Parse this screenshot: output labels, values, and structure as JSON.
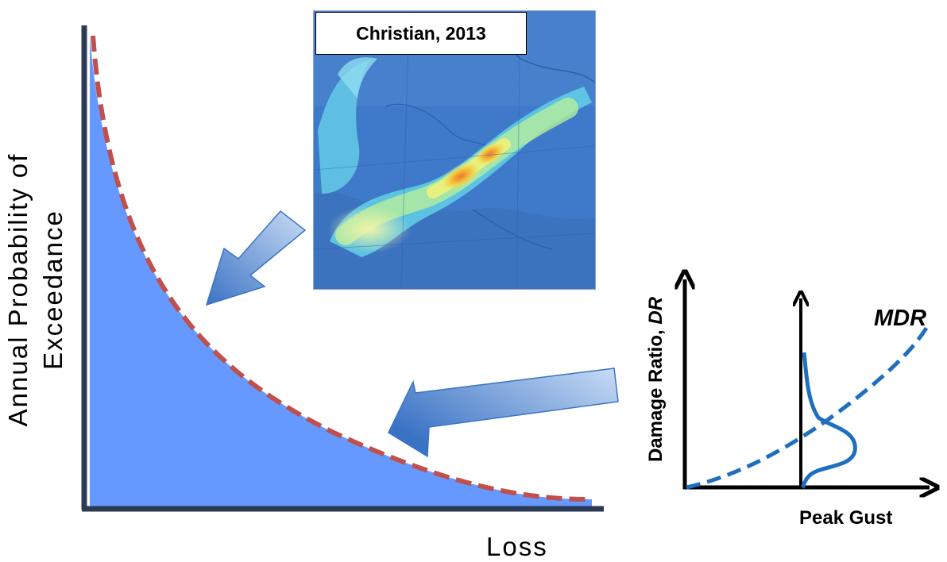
{
  "ep_curve": {
    "y_label_line1": "Annual Probability of",
    "y_label_line2": "Exceedance",
    "x_label": "Loss",
    "fill_color": "#6599ff",
    "curve_color": "#c0504d",
    "axis_color": "#2b3a55"
  },
  "storm_map": {
    "caption": "Christian, 2013"
  },
  "vulnerability": {
    "y_label": "Damage Ratio,",
    "y_label_var": "DR",
    "x_label": "Peak Gust",
    "curve_label": "MDR",
    "curve_color": "#1f6fbf"
  },
  "arrows": {
    "color": "#4f86cc"
  }
}
